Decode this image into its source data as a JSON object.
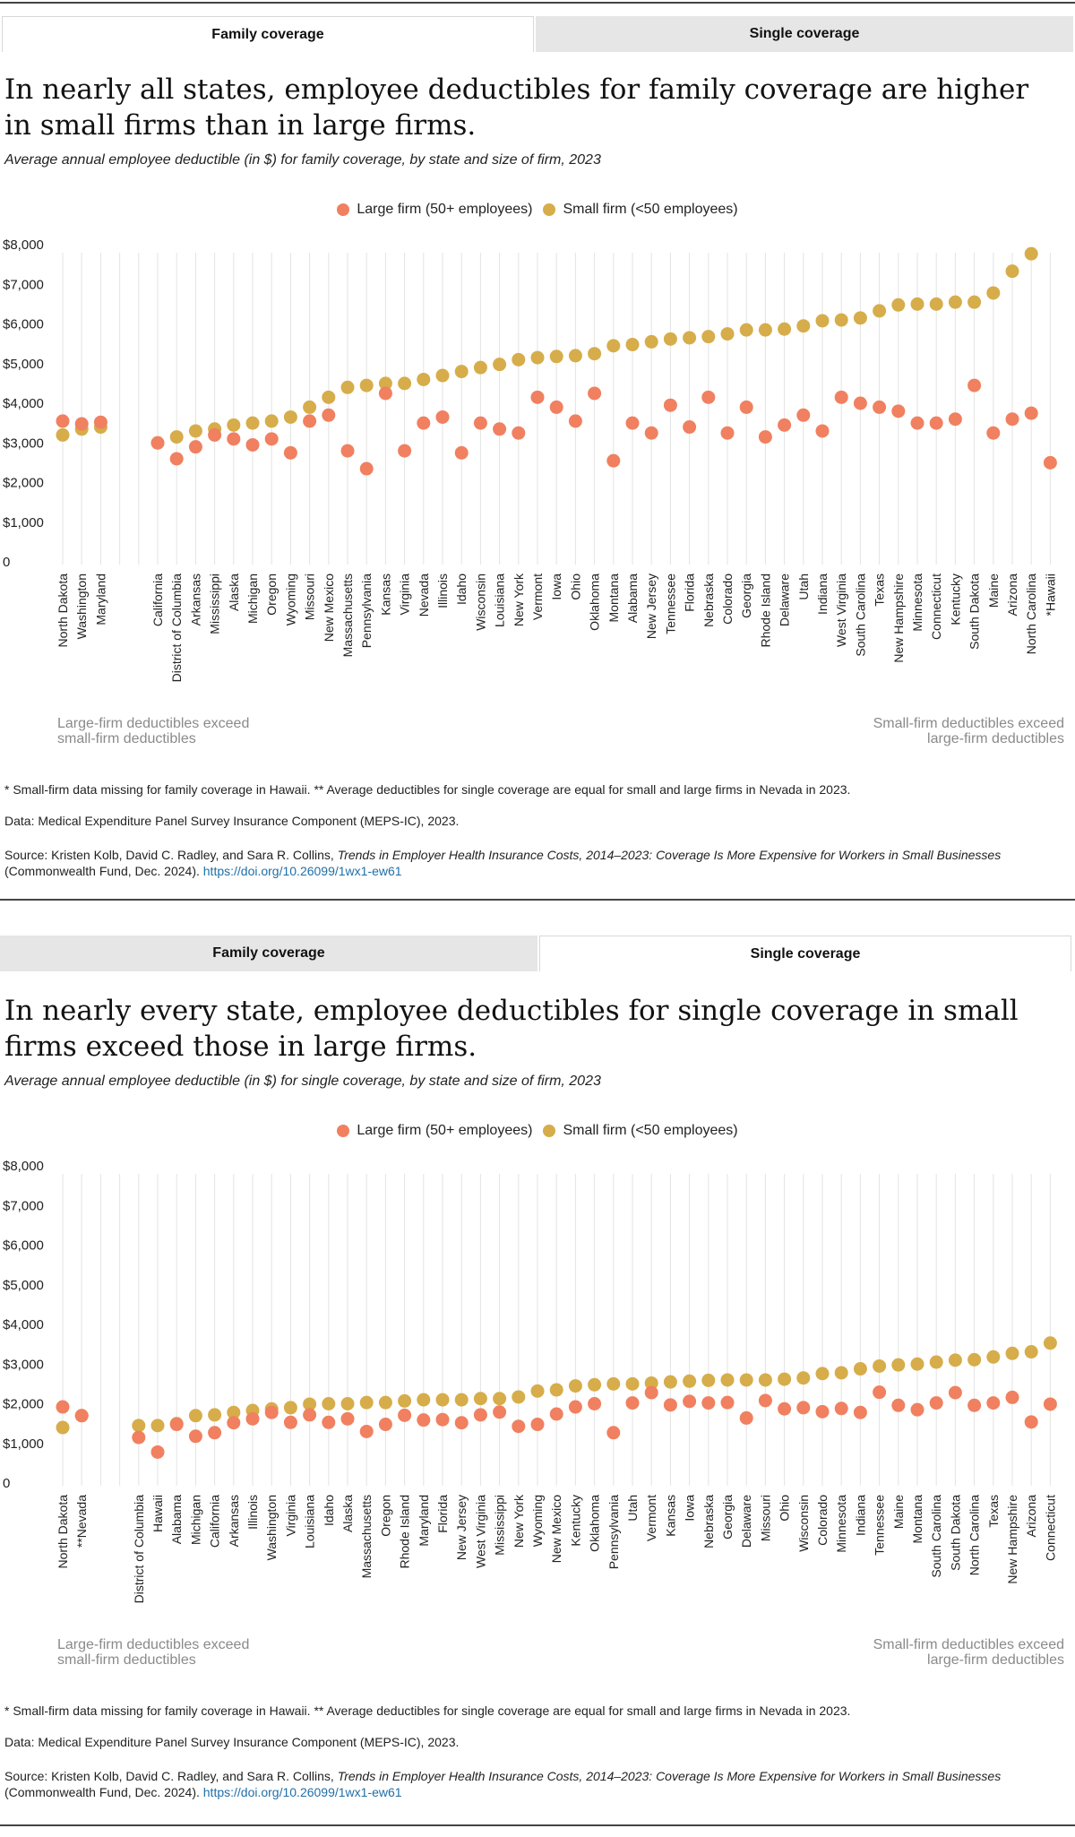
{
  "colors": {
    "large": "#f08060",
    "small": "#d6ad4a"
  },
  "panels": [
    {
      "tabs": {
        "family": "Family coverage",
        "single": "Single coverage",
        "active": "family"
      },
      "title": "In nearly all states, employee deductibles for family coverage are higher in small firms than in large firms.",
      "subtitle": "Average annual employee deductible (in $) for family coverage, by state and size of firm, 2023",
      "legend": {
        "large": "Large firm (50+ employees)",
        "small": "Small firm (<50 employees)"
      },
      "hint_left": "Large-firm deductibles exceed small-firm deductibles",
      "hint_right": "Small-firm deductibles exceed large-firm deductibles",
      "footnote": "* Small-firm data missing for family coverage in Hawaii. ** Average deductibles for single coverage are equal for small and large firms in Nevada in 2023.",
      "data_note": "Data: Medical Expenditure Panel Survey Insurance Component (MEPS-IC), 2023.",
      "source_prefix": "Source: Kristen Kolb, David C. Radley, and Sara R. Collins, ",
      "source_title": "Trends in Employer Health Insurance Costs, 2014–2023: Coverage Is More Expensive for Workers in Small Businesses",
      "source_suffix": " (Commonwealth Fund, Dec. 2024). ",
      "source_link": "https://doi.org/10.26099/1wx1-ew61"
    },
    {
      "tabs": {
        "family": "Family coverage",
        "single": "Single coverage",
        "active": "single"
      },
      "title": "In nearly every state, employee deductibles for single coverage in small firms exceed those in large firms.",
      "subtitle": "Average annual employee deductible (in $) for single coverage, by state and size of firm, 2023",
      "legend": {
        "large": "Large firm (50+ employees)",
        "small": "Small firm (<50 employees)"
      },
      "hint_left": "Large-firm deductibles exceed small-firm deductibles",
      "hint_right": "Small-firm deductibles exceed large-firm deductibles",
      "footnote": "* Small-firm data missing for family coverage in Hawaii. ** Average deductibles for single coverage are equal for small and large firms in Nevada in 2023.",
      "data_note": "Data: Medical Expenditure Panel Survey Insurance Component (MEPS-IC), 2023.",
      "source_prefix": "Source: Kristen Kolb, David C. Radley, and Sara R. Collins, ",
      "source_title": "Trends in Employer Health Insurance Costs, 2014–2023: Coverage Is More Expensive for Workers in Small Businesses",
      "source_suffix": " (Commonwealth Fund, Dec. 2024). ",
      "source_link": "https://doi.org/10.26099/1wx1-ew61"
    }
  ],
  "chart_data": [
    {
      "type": "scatter",
      "title": "Average annual employee deductible (in $) for family coverage, by state and size of firm, 2023",
      "ylim": [
        0,
        8000
      ],
      "yticks": [
        "0",
        "$1,000",
        "$2,000",
        "$3,000",
        "$4,000",
        "$5,000",
        "$6,000",
        "$7,000",
        "$8,000"
      ],
      "categories": [
        "North Dakota",
        "Washington",
        "Maryland",
        "",
        "",
        "California",
        "District of Columbia",
        "Arkansas",
        "Mississippi",
        "Alaska",
        "Michigan",
        "Oregon",
        "Wyoming",
        "Missouri",
        "New Mexico",
        "Massachusetts",
        "Pennsylvania",
        "Kansas",
        "Virginia",
        "Nevada",
        "Illinois",
        "Idaho",
        "Wisconsin",
        "Louisiana",
        "New York",
        "Vermont",
        "Iowa",
        "Ohio",
        "Oklahoma",
        "Montana",
        "Alabama",
        "New Jersey",
        "Tennessee",
        "Florida",
        "Nebraska",
        "Colorado",
        "Georgia",
        "Rhode Island",
        "Delaware",
        "Utah",
        "Indiana",
        "West Virginia",
        "South Carolina",
        "Texas",
        "New Hampshire",
        "Minnesota",
        "Connecticut",
        "Kentucky",
        "South Dakota",
        "Maine",
        "Arizona",
        "North Carolina",
        "*Hawaii"
      ],
      "series": [
        {
          "name": "Large firm (50+ employees)",
          "values": [
            3550,
            3480,
            3520,
            null,
            null,
            3000,
            2600,
            2900,
            3200,
            3100,
            2950,
            3100,
            2750,
            3550,
            3700,
            2800,
            2350,
            4250,
            2800,
            3500,
            3650,
            2750,
            3500,
            3350,
            3250,
            4150,
            3900,
            3550,
            4250,
            2550,
            3500,
            3250,
            3950,
            3400,
            4150,
            3250,
            3900,
            3150,
            3450,
            3700,
            3300,
            4150,
            4000,
            3900,
            3800,
            3500,
            3500,
            3600,
            4450,
            3250,
            3600,
            3750,
            2500
          ]
        },
        {
          "name": "Small firm (<50 employees)",
          "values": [
            3200,
            3350,
            3400,
            null,
            null,
            3000,
            3150,
            3300,
            3350,
            3450,
            3500,
            3550,
            3650,
            3900,
            4150,
            4400,
            4450,
            4500,
            4500,
            4600,
            4700,
            4800,
            4900,
            4980,
            5100,
            5150,
            5180,
            5200,
            5250,
            5450,
            5480,
            5550,
            5620,
            5650,
            5680,
            5750,
            5850,
            5850,
            5870,
            5950,
            6080,
            6100,
            6150,
            6330,
            6480,
            6500,
            6500,
            6550,
            6550,
            6780,
            7330,
            7770,
            null
          ]
        }
      ]
    },
    {
      "type": "scatter",
      "title": "Average annual employee deductible (in $) for single coverage, by state and size of firm, 2023",
      "ylim": [
        0,
        8000
      ],
      "yticks": [
        "0",
        "$1,000",
        "$2,000",
        "$3,000",
        "$4,000",
        "$5,000",
        "$6,000",
        "$7,000",
        "$8,000"
      ],
      "categories": [
        "North Dakota",
        "**Nevada",
        "",
        "",
        "District of Columbia",
        "Hawaii",
        "Alabama",
        "Michigan",
        "California",
        "Arkansas",
        "Illinois",
        "Washington",
        "Virginia",
        "Louisiana",
        "Idaho",
        "Alaska",
        "Massachusetts",
        "Oregon",
        "Rhode Island",
        "Maryland",
        "Florida",
        "New Jersey",
        "West Virginia",
        "Mississippi",
        "New York",
        "Wyoming",
        "New Mexico",
        "Kentucky",
        "Oklahoma",
        "Pennsylvania",
        "Utah",
        "Vermont",
        "Kansas",
        "Iowa",
        "Nebraska",
        "Georgia",
        "Delaware",
        "Missouri",
        "Ohio",
        "Wisconsin",
        "Colorado",
        "Minnesota",
        "Indiana",
        "Tennessee",
        "Maine",
        "Montana",
        "South Carolina",
        "South Dakota",
        "North Carolina",
        "Texas",
        "New Hampshire",
        "Arizona",
        "Connecticut"
      ],
      "series": [
        {
          "name": "Large firm (50+ employees)",
          "values": [
            1920,
            1700,
            null,
            null,
            1150,
            780,
            1480,
            1180,
            1270,
            1520,
            1620,
            1780,
            1530,
            1720,
            1530,
            1620,
            1300,
            1480,
            1710,
            1590,
            1600,
            1520,
            1720,
            1790,
            1430,
            1480,
            1740,
            1920,
            2000,
            1270,
            2020,
            2280,
            1970,
            2060,
            2020,
            2030,
            1640,
            2080,
            1870,
            1900,
            1800,
            1880,
            1780,
            2290,
            1960,
            1850,
            2020,
            2280,
            1960,
            2020,
            2160,
            1540,
            1990
          ]
        },
        {
          "name": "Small firm (<50 employees)",
          "values": [
            1400,
            1700,
            null,
            null,
            1450,
            1450,
            1500,
            1700,
            1720,
            1780,
            1830,
            1870,
            1900,
            1990,
            2000,
            2000,
            2030,
            2030,
            2070,
            2100,
            2100,
            2100,
            2130,
            2130,
            2170,
            2320,
            2350,
            2450,
            2480,
            2500,
            2500,
            2520,
            2550,
            2570,
            2590,
            2600,
            2600,
            2600,
            2620,
            2650,
            2760,
            2780,
            2880,
            2950,
            2980,
            3000,
            3050,
            3100,
            3110,
            3180,
            3270,
            3310,
            3530
          ]
        }
      ]
    }
  ]
}
